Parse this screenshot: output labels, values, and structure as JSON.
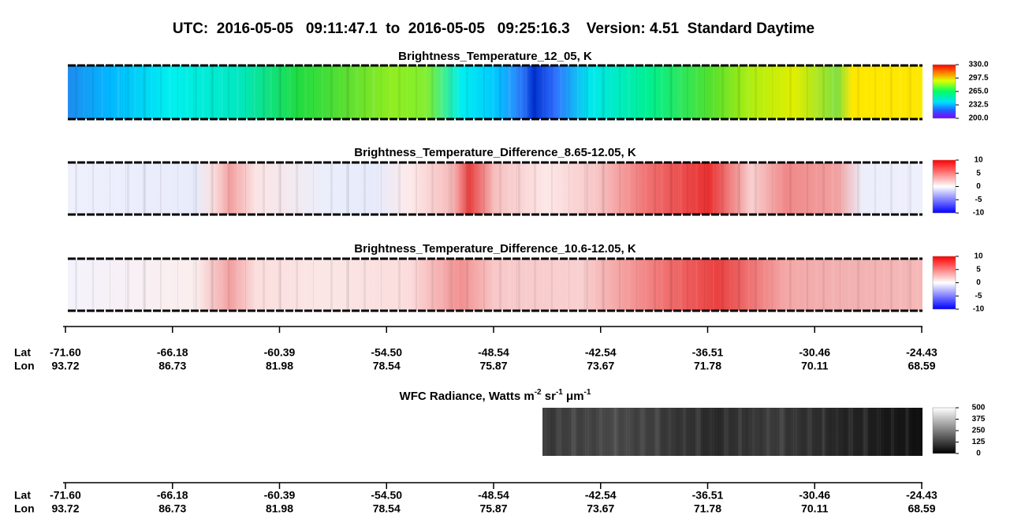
{
  "chart_data": [
    {
      "type": "heatmap",
      "title": "UTC:  2016-05-05   09:11:47.1  to  2016-05-05   09:25:16.3    Version: 4.51  Standard Daytime"
    },
    {
      "type": "heatmap",
      "title": "Brightness_Temperature_12_05, K",
      "clim": [
        200,
        330
      ],
      "cticks": [
        {
          "value": 330,
          "label": "330.0"
        },
        {
          "value": 297.5,
          "label": "297.5"
        },
        {
          "value": 265,
          "label": "265.0"
        },
        {
          "value": 232.5,
          "label": "232.5"
        },
        {
          "value": 200,
          "label": "200.0"
        }
      ]
    },
    {
      "type": "heatmap",
      "title": "Brightness_Temperature_Difference_8.65-12.05, K",
      "clim": [
        -10,
        10
      ],
      "cticks": [
        10,
        5,
        0,
        -5,
        -10
      ]
    },
    {
      "type": "heatmap",
      "title": "Brightness_Temperature_Difference_10.6-12.05, K",
      "clim": [
        -10,
        10
      ],
      "cticks": [
        10,
        5,
        0,
        -5,
        -10
      ]
    },
    {
      "type": "heatmap",
      "title_parts": [
        "WFC Radiance, Watts m",
        "-2",
        " sr",
        "-1",
        " μm",
        "-1"
      ],
      "clim": [
        0,
        500
      ],
      "cticks": [
        500,
        375,
        250,
        125,
        0
      ]
    },
    {
      "type": "axis",
      "row_labels": [
        "Lat",
        "Lon"
      ],
      "lat": [
        "-71.60",
        "-66.18",
        "-60.39",
        "-54.50",
        "-48.54",
        "-42.54",
        "-36.51",
        "-30.46",
        "-24.43"
      ],
      "lon": [
        "93.72",
        "86.73",
        "81.98",
        "78.54",
        "75.87",
        "73.67",
        "71.78",
        "70.11",
        "68.59"
      ]
    }
  ]
}
